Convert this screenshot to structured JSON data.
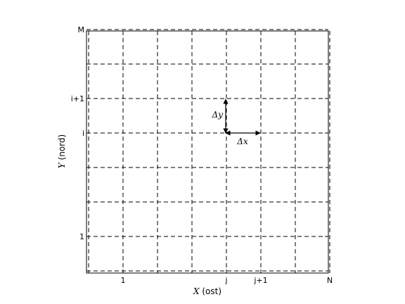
{
  "axes": {
    "xlabel_var": "X",
    "xlabel_unit": " (ost)",
    "ylabel_var": "Y",
    "ylabel_unit": " (nord)"
  },
  "x_ticks": [
    {
      "label": "1",
      "col": 1
    },
    {
      "label": "j",
      "col": 4
    },
    {
      "label": "j+1",
      "col": 5
    },
    {
      "label": "N",
      "col": 7
    }
  ],
  "y_ticks": [
    {
      "label": "M",
      "row": 7
    },
    {
      "label": "i+1",
      "row": 5
    },
    {
      "label": "i",
      "row": 4
    },
    {
      "label": "1",
      "row": 1
    }
  ],
  "grid": {
    "columns": 7,
    "rows": 7,
    "dashed": true
  },
  "deltas": {
    "dx": "Δx",
    "dy": "Δy"
  }
}
